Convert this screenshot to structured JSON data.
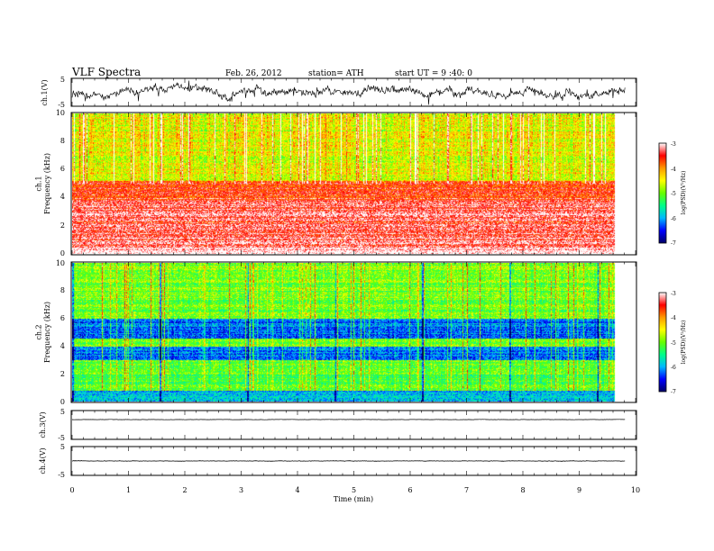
{
  "header": {
    "title": "VLF  Spectra",
    "date": "Feb. 26, 2012",
    "station": "station= ATH",
    "start": "start  UT  =   9 :40: 0"
  },
  "chart_data": [
    {
      "type": "line",
      "name": "ch1-voltage",
      "ylabel": "ch.1(V)",
      "ylim": [
        -5,
        5
      ],
      "yticks": [
        "5",
        "-5"
      ],
      "xlim": [
        0,
        10
      ],
      "level": 0,
      "amplitude": 1.4
    },
    {
      "type": "heatmap",
      "name": "ch1-spectrogram",
      "ylabel": "ch.1\nFrequency (kHz)",
      "ylim": [
        0,
        10
      ],
      "yticks": [
        "0",
        "2",
        "4",
        "6",
        "8",
        "10"
      ],
      "xlim": [
        0,
        10
      ],
      "colorbar": {
        "label": "log(PSD)(V²/Hz)",
        "range": [
          -7,
          -3
        ],
        "ticks": [
          "-3",
          "-4",
          "-5",
          "-6",
          "-7"
        ],
        "colors": [
          "#000066",
          "#0000ff",
          "#00b8ff",
          "#00ff88",
          "#66ff00",
          "#ffff00",
          "#ff9900",
          "#ff0000",
          "#ffffff"
        ]
      },
      "profile": {
        "upper_level": 0.62,
        "band_4_5_level": 0.85,
        "low_level": 0.93,
        "bursts": "frequent vertical red bursts above 5 kHz"
      }
    },
    {
      "type": "heatmap",
      "name": "ch2-spectrogram",
      "ylabel": "ch.2\nFrequency (kHz)",
      "ylim": [
        0,
        10
      ],
      "yticks": [
        "0",
        "2",
        "4",
        "6",
        "8",
        "10"
      ],
      "xlim": [
        0,
        10
      ],
      "colorbar": {
        "label": "log(PSD)(V²/Hz)",
        "range": [
          -7,
          -3
        ],
        "ticks": [
          "-3",
          "-4",
          "-5",
          "-6",
          "-7"
        ]
      },
      "profile": {
        "upper_level": 0.5,
        "band_5_6_level": 0.2,
        "band_3_4_level": 0.2,
        "low_level": 0.55
      }
    },
    {
      "type": "line",
      "name": "ch3-voltage",
      "ylabel": "ch.3(V)",
      "ylim": [
        -5,
        5
      ],
      "yticks": [
        "5",
        "-5"
      ],
      "xlim": [
        0,
        10
      ],
      "level": 2,
      "amplitude": 0.2
    },
    {
      "type": "line",
      "name": "ch4-voltage",
      "ylabel": "ch.4(V)",
      "ylim": [
        -5,
        5
      ],
      "yticks": [
        "5",
        "-5"
      ],
      "xlim": [
        0,
        10
      ],
      "level": 0,
      "amplitude": 0.3
    }
  ],
  "xaxis": {
    "label": "Time  (min)",
    "ticks": [
      "0",
      "1",
      "2",
      "3",
      "4",
      "5",
      "6",
      "7",
      "8",
      "9",
      "10"
    ],
    "data_end": 9.82
  }
}
